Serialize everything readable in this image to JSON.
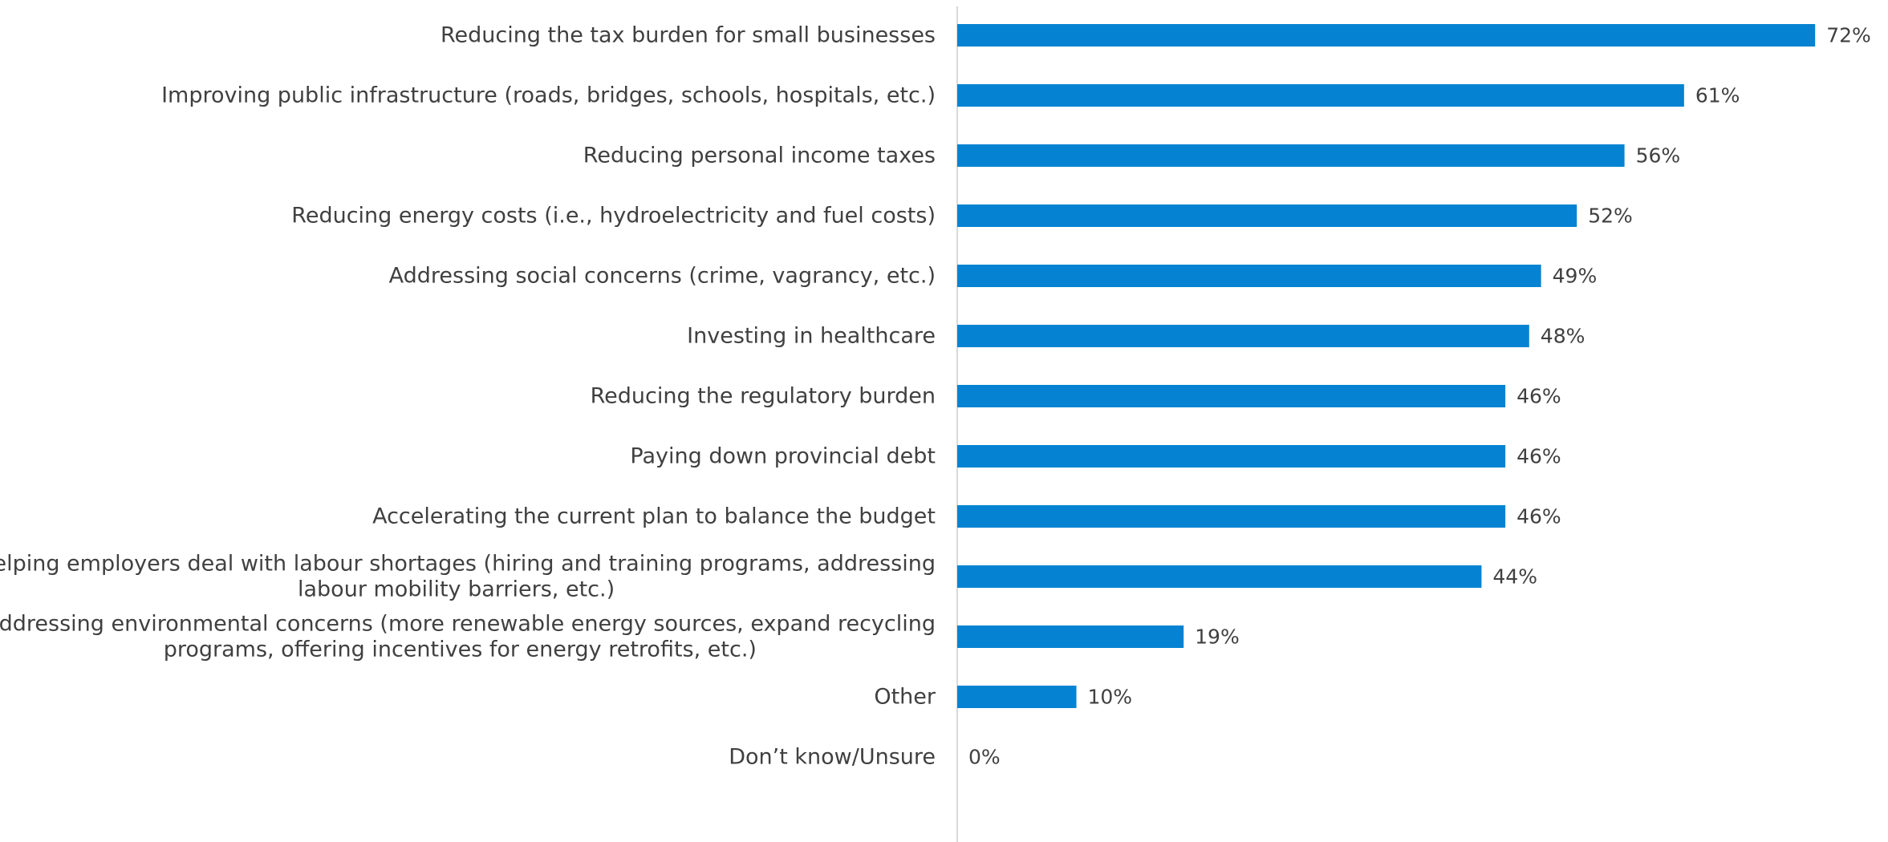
{
  "colors": {
    "bar": "#0583d2",
    "axis": "#d9d9d9",
    "text": "#404040",
    "background": "#ffffff"
  },
  "chart_data": {
    "type": "bar",
    "orientation": "horizontal",
    "title": "",
    "xlabel": "",
    "ylabel": "",
    "xlim": [
      0,
      100
    ],
    "grid": false,
    "legend": "none",
    "value_suffix": "%",
    "categories": [
      [
        "Reducing the tax burden for small businesses"
      ],
      [
        "Improving public infrastructure (roads, bridges, schools, hospitals, etc.)"
      ],
      [
        "Reducing personal income taxes"
      ],
      [
        "Reducing energy costs (i.e., hydroelectricity and fuel costs)"
      ],
      [
        "Addressing social concerns (crime, vagrancy, etc.)"
      ],
      [
        "Investing in healthcare"
      ],
      [
        "Reducing the regulatory burden"
      ],
      [
        "Paying down provincial debt"
      ],
      [
        "Accelerating the current plan to balance the budget"
      ],
      [
        "Helping employers deal with labour shortages (hiring and training programs, addressing",
        "labour mobility barriers, etc.)"
      ],
      [
        "Addressing environmental concerns (more renewable energy sources, expand recycling",
        "programs, offering incentives for energy retrofits, etc.)"
      ],
      [
        "Other"
      ],
      [
        "Don’t know/Unsure"
      ]
    ],
    "values": [
      72,
      61,
      56,
      52,
      49,
      48,
      46,
      46,
      46,
      44,
      19,
      10,
      0
    ],
    "value_labels": [
      "72%",
      "61%",
      "56%",
      "52%",
      "49%",
      "48%",
      "46%",
      "46%",
      "46%",
      "44%",
      "19%",
      "10%",
      "0%"
    ]
  }
}
